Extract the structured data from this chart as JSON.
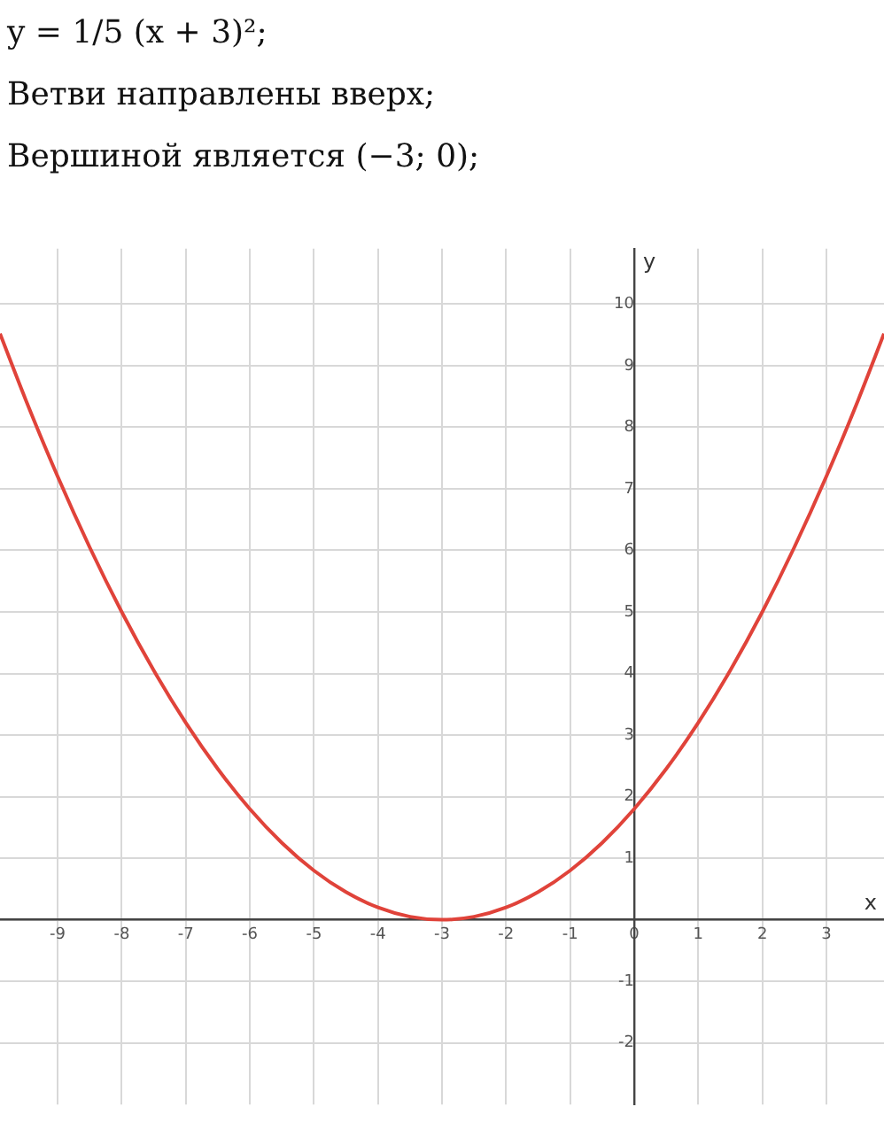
{
  "chart_data": {
    "type": "line",
    "title": "y = 1/5 (x + 3)²;",
    "subtitle": "Ветви направлены вверх;",
    "annotations": [
      "Вершиной является (−3; 0);"
    ],
    "xlabel": "x",
    "ylabel": "y",
    "x": [
      -9.9,
      -9.5,
      -9,
      -8.5,
      -8,
      -7.5,
      -7,
      -6.5,
      -6,
      -5.5,
      -5,
      -4.5,
      -4,
      -3.5,
      -3,
      -2.5,
      -2,
      -1.5,
      -1,
      -0.5,
      0,
      0.5,
      1,
      1.5,
      2,
      2.5,
      3,
      3.5,
      3.9
    ],
    "series": [
      {
        "color": "#e0433a",
        "values": [
          9.52,
          8.45,
          7.2,
          6.05,
          5,
          4.05,
          3.2,
          2.45,
          1.8,
          1.25,
          0.8,
          0.45,
          0.2,
          0.05,
          0,
          0.05,
          0.2,
          0.45,
          0.8,
          1.25,
          1.8,
          2.45,
          3.2,
          4.05,
          5,
          6.05,
          7.2,
          8.45,
          9.52
        ]
      }
    ],
    "xlim": [
      -9.9,
      3.9
    ],
    "ylim": [
      -3,
      10.9
    ],
    "xticks": [
      -9,
      -8,
      -7,
      -6,
      -5,
      -4,
      -3,
      -2,
      -1,
      0,
      1,
      2,
      3
    ],
    "yticks": [
      -2,
      -1,
      {
        "value": 0,
        "label": null
      },
      1,
      2,
      3,
      4,
      5,
      6,
      7,
      8,
      9,
      10
    ],
    "grid": true,
    "marker": "none",
    "line_style": "solid",
    "legend": false
  }
}
